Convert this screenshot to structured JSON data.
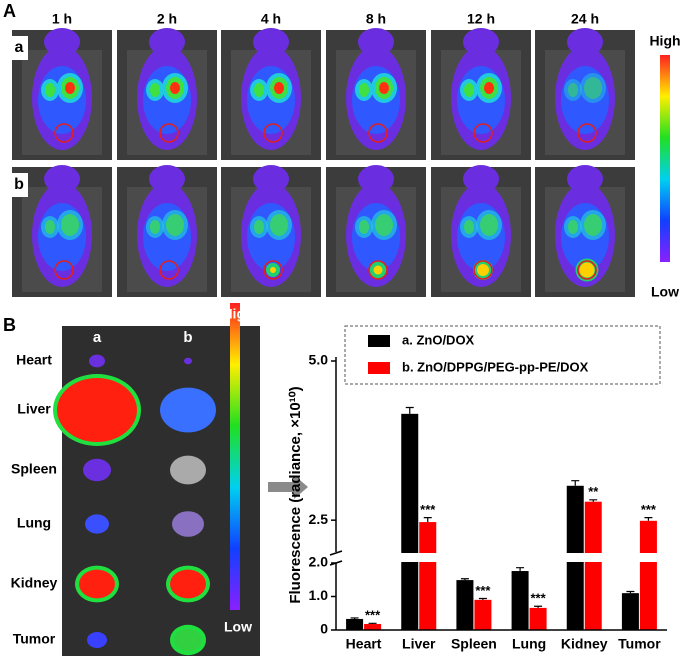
{
  "figure": {
    "panel_a": {
      "label": "A",
      "times": [
        "1 h",
        "2 h",
        "4 h",
        "8 h",
        "12 h",
        "24 h"
      ],
      "rows": [
        "a",
        "b"
      ],
      "colorbar": {
        "high": "High",
        "low": "Low"
      }
    },
    "panel_b": {
      "label": "B",
      "columns": [
        "a",
        "b"
      ],
      "organs": [
        "Heart",
        "Liver",
        "Spleen",
        "Lung",
        "Kidney",
        "Tumor"
      ],
      "colorbar": {
        "high": "High",
        "low": "Low"
      }
    }
  },
  "chart_data": {
    "type": "bar",
    "y_label": "Fluorescence (radiance, ×10¹⁰)",
    "categories": [
      "Heart",
      "Liver",
      "Spleen",
      "Lung",
      "Kidney",
      "Tumor"
    ],
    "series": [
      {
        "name": "a. ZnO/DOX",
        "color": "#000000",
        "values": [
          0.33,
          4.17,
          1.49,
          1.76,
          3.04,
          1.1
        ],
        "errors": [
          0.03,
          0.1,
          0.04,
          0.1,
          0.08,
          0.05
        ],
        "significance": [
          null,
          null,
          null,
          null,
          null,
          null
        ]
      },
      {
        "name": "b. ZnO/DPPG/PEG-pp-PE/DOX",
        "color": "#ff0000",
        "values": [
          0.18,
          2.47,
          0.9,
          0.66,
          2.79,
          2.49
        ],
        "errors": [
          0.02,
          0.07,
          0.04,
          0.05,
          0.03,
          0.05
        ],
        "significance": [
          "***",
          "***",
          "***",
          "***",
          "**",
          "***"
        ]
      }
    ],
    "ylim_lower": [
      0,
      {
        "value": 2,
        "label": "2.0"
      }
    ],
    "yticks_lower": [
      0,
      {
        "value": 1,
        "label": "1.0"
      },
      {
        "value": 2,
        "label": "2.0"
      }
    ],
    "ylim_upper": [
      {
        "value": 2,
        "label": "2.0"
      },
      {
        "value": 5,
        "label": "5.0"
      }
    ],
    "yticks_upper": [
      2.5,
      {
        "value": 5,
        "label": "5.0"
      }
    ]
  }
}
